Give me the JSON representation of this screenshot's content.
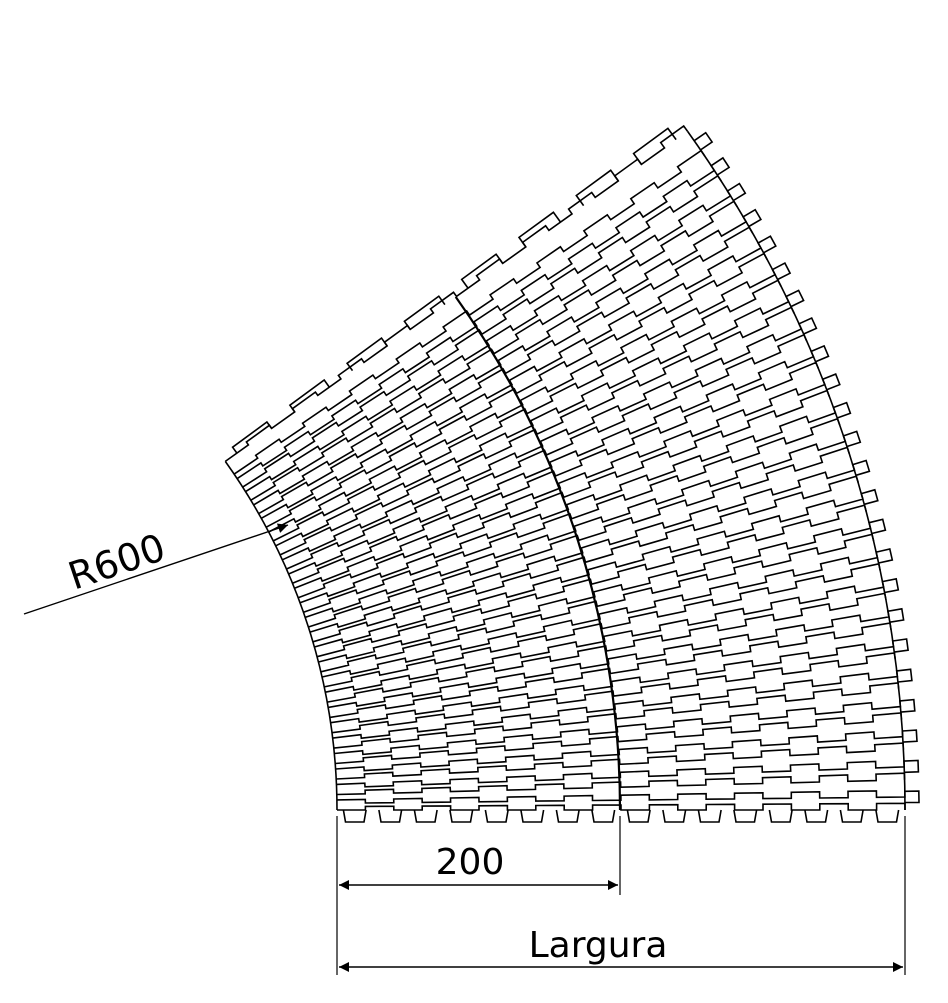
{
  "labels": {
    "radius": "R600",
    "dim_inner": "200",
    "dim_width": "Largura"
  },
  "colors": {
    "line": "#000000",
    "background": "#ffffff"
  }
}
